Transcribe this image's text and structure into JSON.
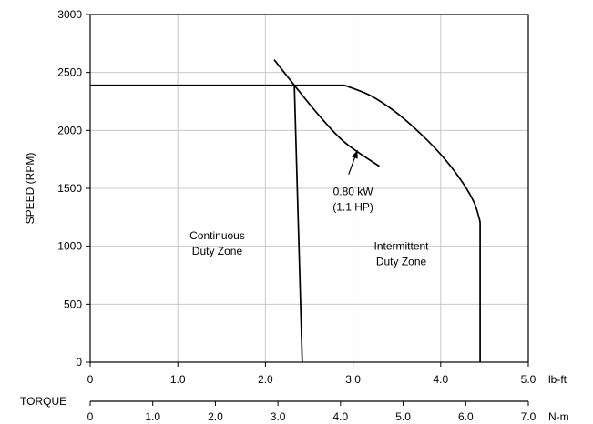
{
  "chart_data": {
    "type": "line",
    "title": "",
    "ylabel": "SPEED (RPM)",
    "xlabel_primary_unit": "lb-ft",
    "xlabel_secondary_unit": "N-m",
    "torque_label": "TORQUE",
    "xlim_primary": [
      0,
      5.0
    ],
    "xlim_secondary": [
      0,
      7.0
    ],
    "ylim": [
      0,
      3000
    ],
    "grid": true,
    "y_ticks": [
      "0",
      "500",
      "1000",
      "1500",
      "2000",
      "2500",
      "3000"
    ],
    "y_tick_values": [
      0,
      500,
      1000,
      1500,
      2000,
      2500,
      3000
    ],
    "x_ticks_primary": [
      "0",
      "1.0",
      "2.0",
      "3.0",
      "4.0",
      "5.0"
    ],
    "x_tick_values_primary": [
      0,
      1,
      2,
      3,
      4,
      5
    ],
    "x_ticks_secondary": [
      "0",
      "1.0",
      "2.0",
      "3.0",
      "4.0",
      "5.0",
      "6.0",
      "7.0"
    ],
    "x_tick_values_secondary": [
      0,
      1,
      2,
      3,
      4,
      5,
      6,
      7
    ],
    "series": [
      {
        "values": [
          [
            0,
            2390
          ],
          [
            2.33,
            2390
          ],
          [
            2.9,
            2390
          ],
          [
            3.2,
            2300
          ],
          [
            3.5,
            2150
          ],
          [
            3.8,
            1950
          ],
          [
            4.05,
            1750
          ],
          [
            4.25,
            1550
          ],
          [
            4.38,
            1380
          ],
          [
            4.44,
            1240
          ],
          [
            4.45,
            1200
          ],
          [
            4.45,
            0
          ]
        ]
      },
      {
        "values": [
          [
            2.33,
            2390
          ],
          [
            2.42,
            0
          ]
        ]
      },
      {
        "values": [
          [
            2.1,
            2610
          ],
          [
            2.33,
            2390
          ],
          [
            2.6,
            2140
          ],
          [
            2.9,
            1900
          ],
          [
            3.3,
            1690
          ]
        ]
      }
    ],
    "annotations": [
      {
        "id": "power",
        "lines": [
          "0.80 kW",
          "(1.1 HP)"
        ],
        "x": 3.0,
        "y": 1440
      },
      {
        "id": "continuous",
        "lines": [
          "Continuous",
          "Duty Zone"
        ],
        "x": 1.45,
        "y": 1060
      },
      {
        "id": "intermittent",
        "lines": [
          "Intermittent",
          "Duty Zone"
        ],
        "x": 3.55,
        "y": 970
      }
    ],
    "arrow": {
      "from": [
        2.95,
        1620
      ],
      "to": [
        3.05,
        1830
      ]
    }
  }
}
